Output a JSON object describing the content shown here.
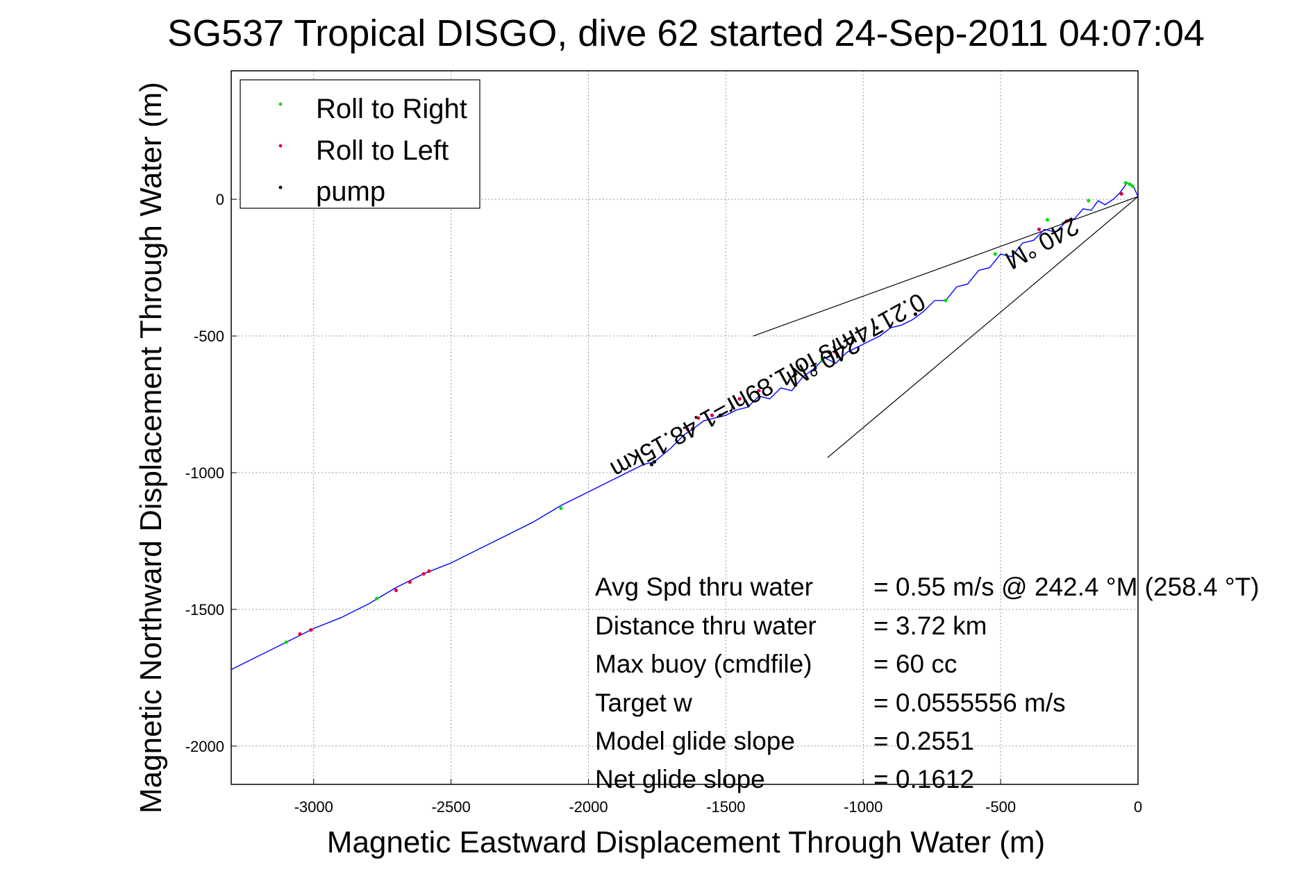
{
  "chart_data": {
    "type": "line",
    "title": "SG537 Tropical DISGO, dive 62 started 24-Sep-2011 04:07:04",
    "xlabel": "Magnetic Eastward Displacement Through Water (m)",
    "ylabel": "Magnetic Northward Displacement Through Water (m)",
    "xlim": [
      -3300,
      0
    ],
    "ylim": [
      -2140,
      470
    ],
    "xticks": [
      -3000,
      -2500,
      -2000,
      -1500,
      -1000,
      -500,
      0
    ],
    "yticks": [
      0,
      -500,
      -1000,
      -1500,
      -2000
    ],
    "grid": true,
    "legend": {
      "placement": "top-left",
      "entries": [
        {
          "label": "Roll to Right",
          "color": "#00e000"
        },
        {
          "label": "Roll to Left",
          "color": "#e0003a"
        },
        {
          "label": "pump",
          "color": "#000000"
        }
      ]
    },
    "track": {
      "color": "#0000ff",
      "x": [
        0,
        -18,
        -40,
        -65,
        -90,
        -120,
        -145,
        -170,
        -200,
        -230,
        -260,
        -300,
        -340,
        -380,
        -420,
        -460,
        -500,
        -540,
        -580,
        -620,
        -660,
        -700,
        -740,
        -780,
        -820,
        -860,
        -900,
        -940,
        -980,
        -1020,
        -1060,
        -1100,
        -1140,
        -1180,
        -1220,
        -1260,
        -1300,
        -1340,
        -1380,
        -1420,
        -1460,
        -1500,
        -1540,
        -1580,
        -1620,
        -1650,
        -1700,
        -1760,
        -1800,
        -1900,
        -2000,
        -2100,
        -2200,
        -2300,
        -2400,
        -2500,
        -2600,
        -2700,
        -2800,
        -2900,
        -3000,
        -3100,
        -3200,
        -3300
      ],
      "y": [
        10,
        50,
        60,
        25,
        0,
        -20,
        -5,
        -40,
        -35,
        -70,
        -80,
        -120,
        -110,
        -150,
        -160,
        -210,
        -200,
        -250,
        -260,
        -310,
        -320,
        -370,
        -370,
        -410,
        -440,
        -460,
        -470,
        -500,
        -520,
        -540,
        -560,
        -600,
        -580,
        -620,
        -650,
        -700,
        -690,
        -730,
        -720,
        -760,
        -770,
        -790,
        -800,
        -810,
        -840,
        -860,
        -910,
        -960,
        -970,
        -1020,
        -1070,
        -1120,
        -1180,
        -1230,
        -1280,
        -1330,
        -1370,
        -1420,
        -1480,
        -1530,
        -1570,
        -1620,
        -1670,
        -1720
      ]
    },
    "roll_right_points": [
      {
        "x": -30,
        "y": 55
      },
      {
        "x": -45,
        "y": 60
      },
      {
        "x": -20,
        "y": 48
      },
      {
        "x": -180,
        "y": -5
      },
      {
        "x": -330,
        "y": -75
      },
      {
        "x": -520,
        "y": -200
      },
      {
        "x": -700,
        "y": -370
      },
      {
        "x": -1150,
        "y": -590
      },
      {
        "x": -2100,
        "y": -1130
      },
      {
        "x": -2770,
        "y": -1460
      },
      {
        "x": -3100,
        "y": -1620
      }
    ],
    "roll_left_points": [
      {
        "x": -60,
        "y": 20
      },
      {
        "x": -260,
        "y": -80
      },
      {
        "x": -360,
        "y": -110
      },
      {
        "x": -1100,
        "y": -560
      },
      {
        "x": -1380,
        "y": -700
      },
      {
        "x": -1450,
        "y": -730
      },
      {
        "x": -1550,
        "y": -790
      },
      {
        "x": -1600,
        "y": -800
      },
      {
        "x": -1640,
        "y": -840
      },
      {
        "x": -2700,
        "y": -1430
      },
      {
        "x": -2650,
        "y": -1400
      },
      {
        "x": -2600,
        "y": -1370
      },
      {
        "x": -2580,
        "y": -1360
      },
      {
        "x": -3010,
        "y": -1575
      },
      {
        "x": -3050,
        "y": -1590
      }
    ],
    "pump_points": [
      {
        "x": -1760,
        "y": -960
      },
      {
        "x": -1770,
        "y": -970
      },
      {
        "x": -1620,
        "y": -840
      },
      {
        "x": -1520,
        "y": -790
      },
      {
        "x": -810,
        "y": -420
      },
      {
        "x": -950,
        "y": -470
      }
    ],
    "annotations": {
      "leader_lines": [
        {
          "x": [
            0,
            -1400
          ],
          "y": [
            10,
            -500
          ]
        },
        {
          "x": [
            0,
            -1130
          ],
          "y": [
            10,
            -945
          ]
        }
      ],
      "current_label_1": "0.2174m/s for1.89hr=1.48.15km",
      "current_label_2": "240 °M",
      "current_label_3": "240 °M"
    },
    "stats": {
      "labels": [
        "Avg Spd thru water",
        "Distance thru water",
        "Max buoy (cmdfile)",
        "Target w",
        "Model glide slope",
        "Net glide slope"
      ],
      "values": [
        "=  0.55 m/s @ 242.4 °M (258.4 °T)",
        "=  3.72 km",
        "= 60 cc",
        "= 0.0555556 m/s",
        "= 0.2551",
        "= 0.1612"
      ]
    }
  }
}
